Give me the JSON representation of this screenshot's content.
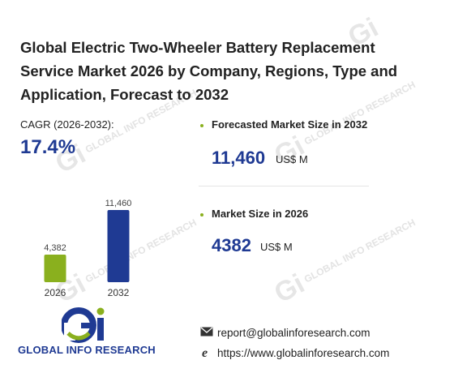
{
  "title": "Global Electric Two-Wheeler Battery Replacement Service Market 2026 by Company, Regions, Type and Application, Forecast to 2032",
  "cagr": {
    "label": "CAGR (2026-2032):",
    "value": "17.4%"
  },
  "forecast": {
    "label": "Forecasted Market Size in 2032",
    "value": "11,460",
    "unit": "US$ M"
  },
  "current": {
    "label": "Market Size in 2026",
    "value": "4382",
    "unit": "US$ M"
  },
  "colors": {
    "accent_blue": "#1f3a93",
    "bar_2026": "#8ab01e",
    "bar_2032": "#1f3a93",
    "bullet": "#8ab01e"
  },
  "chart_data": {
    "type": "bar",
    "categories": [
      "2026",
      "2032"
    ],
    "values": [
      4382,
      11460
    ],
    "data_labels": [
      "4,382",
      "11,460"
    ],
    "title": "",
    "xlabel": "",
    "ylabel": "",
    "ylim": [
      0,
      11460
    ],
    "grid": false
  },
  "logo": {
    "text": "GLOBAL INFO RESEARCH",
    "watermark_text": "GLOBAL INFO RESEARCH"
  },
  "contact": {
    "email": "report@globalinforesearch.com",
    "website": "https://www.globalinforesearch.com"
  },
  "icons": {
    "email": "envelope-icon",
    "website": "browser-e-icon",
    "bullet": "bullet-dot-icon"
  }
}
